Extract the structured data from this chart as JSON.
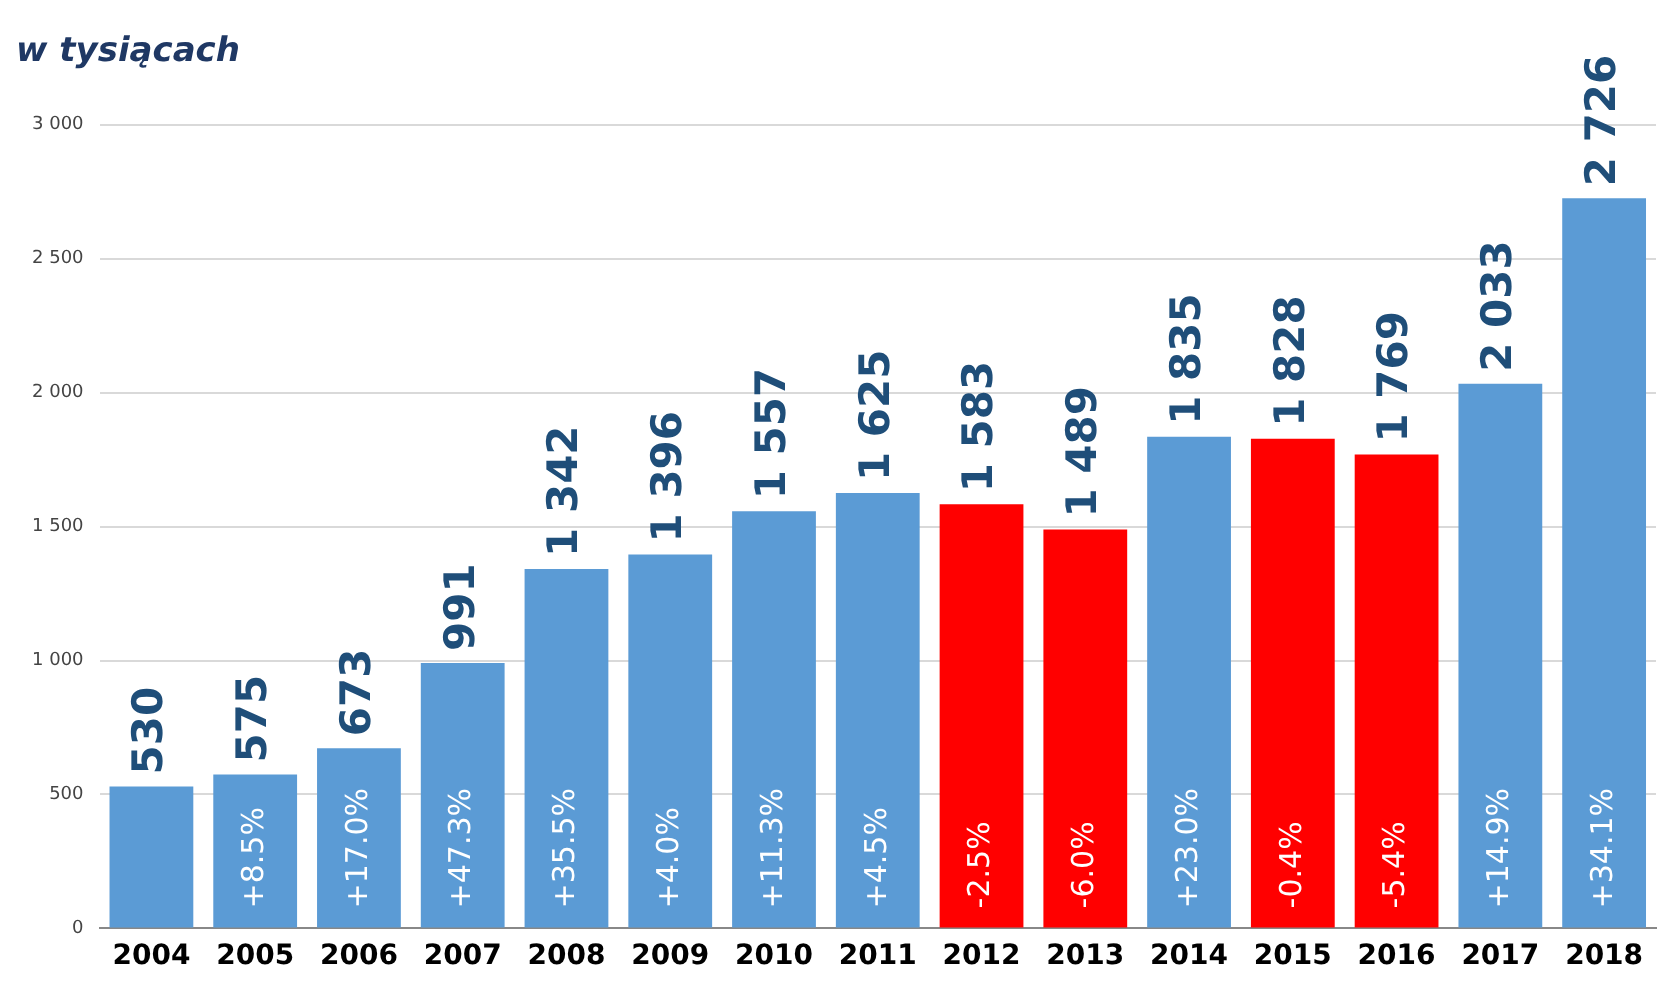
{
  "chart_data": {
    "type": "bar",
    "title": "w tysiącach",
    "categories": [
      "2004",
      "2005",
      "2006",
      "2007",
      "2008",
      "2009",
      "2010",
      "2011",
      "2012",
      "2013",
      "2014",
      "2015",
      "2016",
      "2017",
      "2018"
    ],
    "values": [
      530,
      575,
      673,
      991,
      1342,
      1396,
      1557,
      1625,
      1583,
      1489,
      1835,
      1828,
      1769,
      2033,
      2726
    ],
    "value_labels": [
      "530",
      "575",
      "673",
      "991",
      "1 342",
      "1 396",
      "1 557",
      "1 625",
      "1 583",
      "1 489",
      "1 835",
      "1 828",
      "1 769",
      "2 033",
      "2 726"
    ],
    "colors": [
      "#5b9bd5",
      "#5b9bd5",
      "#5b9bd5",
      "#5b9bd5",
      "#5b9bd5",
      "#5b9bd5",
      "#5b9bd5",
      "#5b9bd5",
      "#ff0000",
      "#ff0000",
      "#5b9bd5",
      "#ff0000",
      "#ff0000",
      "#5b9bd5",
      "#5b9bd5"
    ],
    "annotations": [
      "+8.5%",
      "+17.0%",
      "+47.3%",
      "+35.5%",
      "+4.0%",
      "+11.3%",
      "+4.5%",
      "-2.5%",
      "-6.0%",
      "+23.0%",
      "-0.4%",
      "-5.4%",
      "+14.9%",
      "+34.1%"
    ],
    "ylim": [
      0,
      3000
    ],
    "yticks": [
      0,
      500,
      {
        "value": 1000,
        "label": "1 000"
      },
      {
        "value": 1500,
        "label": "1 500"
      },
      {
        "value": 2000,
        "label": "2 000"
      },
      {
        "value": 2500,
        "label": "2 500"
      },
      {
        "value": 3000,
        "label": "3 000"
      }
    ],
    "grid": "y",
    "legend": false
  }
}
